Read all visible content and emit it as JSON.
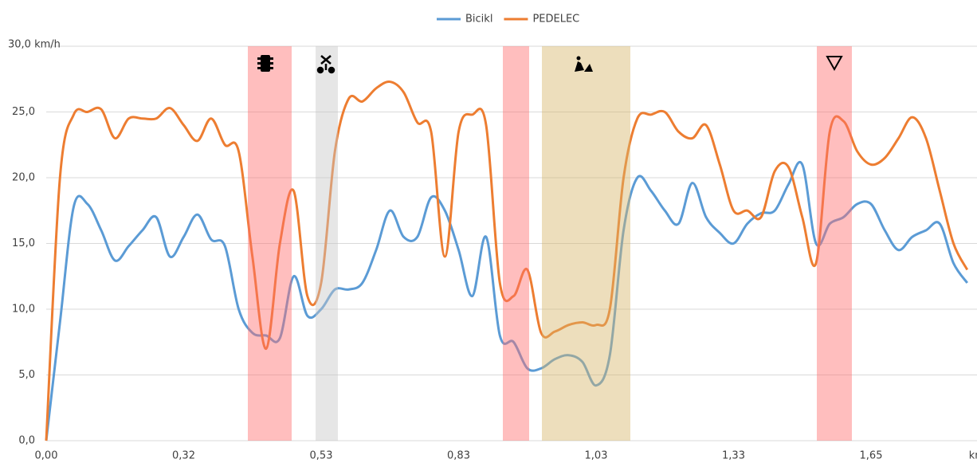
{
  "chart_data": {
    "type": "line",
    "categories": [
      "0,00",
      null,
      null,
      null,
      null,
      null,
      null,
      null,
      null,
      null,
      "0,32",
      null,
      null,
      null,
      null,
      null,
      null,
      null,
      null,
      null,
      "0,53",
      null,
      null,
      null,
      null,
      null,
      null,
      null,
      null,
      null,
      "0,83",
      null,
      null,
      null,
      null,
      null,
      null,
      null,
      null,
      null,
      "1,03",
      null,
      null,
      null,
      null,
      null,
      null,
      null,
      null,
      null,
      "1,33",
      null,
      null,
      null,
      null,
      null,
      null,
      null,
      null,
      null,
      "1,65",
      null,
      null,
      null,
      null,
      null,
      null,
      "km"
    ],
    "series": [
      {
        "name": "Bicikl",
        "color": "#5b9bd5",
        "values": [
          0,
          9,
          17.8,
          18,
          16,
          13.7,
          14.8,
          16,
          17,
          14,
          15.5,
          17.2,
          15.3,
          14.8,
          10,
          8.2,
          8,
          7.8,
          12.5,
          9.5,
          10,
          11.5,
          11.5,
          12,
          14.5,
          17.5,
          15.5,
          15.5,
          18.5,
          17.5,
          14.5,
          11,
          15.5,
          8,
          7.5,
          5.5,
          5.5,
          6.2,
          6.5,
          6,
          4.2,
          6.5,
          16,
          20,
          19,
          17.5,
          16.5,
          19.6,
          17,
          15.8,
          15,
          16.5,
          17.3,
          17.5,
          19.5,
          21,
          15,
          16.5,
          17,
          18,
          18,
          16,
          14.5,
          15.5,
          16,
          16.5,
          13.5,
          12
        ]
      },
      {
        "name": "PEDELEC",
        "color": "#ed7d31",
        "values": [
          0,
          20,
          24.8,
          25,
          25.2,
          23,
          24.5,
          24.5,
          24.5,
          25.3,
          24,
          22.8,
          24.5,
          22.5,
          22,
          14,
          7,
          15,
          19,
          11,
          12,
          22,
          26,
          25.8,
          26.8,
          27.3,
          26.5,
          24.2,
          23.5,
          14,
          23.5,
          24.8,
          24,
          12,
          11,
          13,
          8.2,
          8.3,
          8.8,
          9,
          8.8,
          10,
          20,
          24.5,
          24.8,
          25,
          23.5,
          23,
          24,
          21,
          17.5,
          17.5,
          17,
          20.5,
          20.8,
          17,
          13.5,
          23.5,
          24.3,
          22,
          21,
          21.5,
          23,
          24.6,
          23,
          19,
          15,
          13
        ]
      }
    ],
    "ylim": [
      0,
      30
    ],
    "yticks": [
      {
        "value": 0,
        "label": "0,0"
      },
      {
        "value": 5,
        "label": "5,0"
      },
      {
        "value": 10,
        "label": "10,0"
      },
      {
        "value": 15,
        "label": "15,0"
      },
      {
        "value": 20,
        "label": "20,0"
      },
      {
        "value": 25,
        "label": "25,0"
      },
      {
        "value": 30,
        "label": "30,0 km/h"
      }
    ],
    "grid": true,
    "legend": "top"
  }
}
